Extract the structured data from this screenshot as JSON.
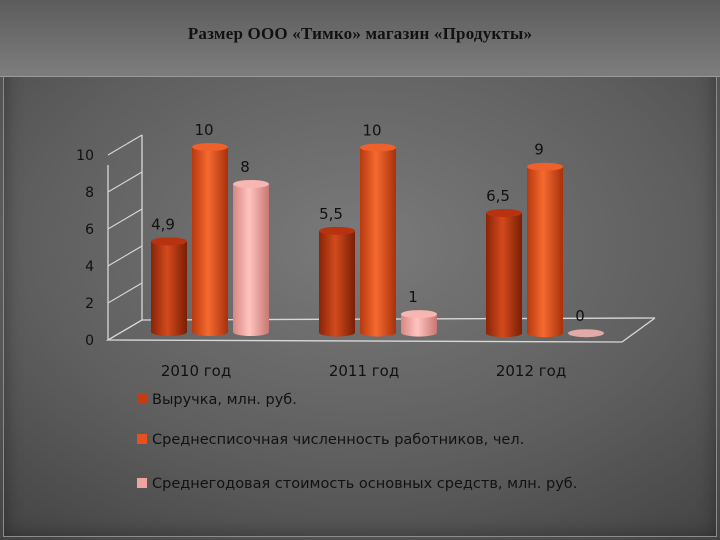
{
  "title": "Размер ООО «Тимко» магазин «Продукты»",
  "chart_data": {
    "type": "bar",
    "categories": [
      "2010 год",
      "2011 год",
      "2012 год"
    ],
    "series": [
      {
        "name": "Выручка,   млн. руб.",
        "values": [
          4.9,
          5.5,
          6.5
        ],
        "labels": [
          "4,9",
          "5,5",
          "6,5"
        ],
        "color": "#c23b14"
      },
      {
        "name": "Среднесписочная численность работников, чел.",
        "values": [
          10,
          10,
          9
        ],
        "labels": [
          "10",
          "10",
          "9"
        ],
        "color": "#e8501e"
      },
      {
        "name": "Среднегодовая стоимость основных средств, млн. руб.",
        "values": [
          8,
          1,
          0
        ],
        "labels": [
          "8",
          "1",
          "0"
        ],
        "color": "#f0a4a0"
      }
    ],
    "yticks": [
      "0",
      "2",
      "4",
      "6",
      "8",
      "10"
    ],
    "ylim": [
      0,
      10
    ],
    "legend": "bottom",
    "grid": false
  }
}
